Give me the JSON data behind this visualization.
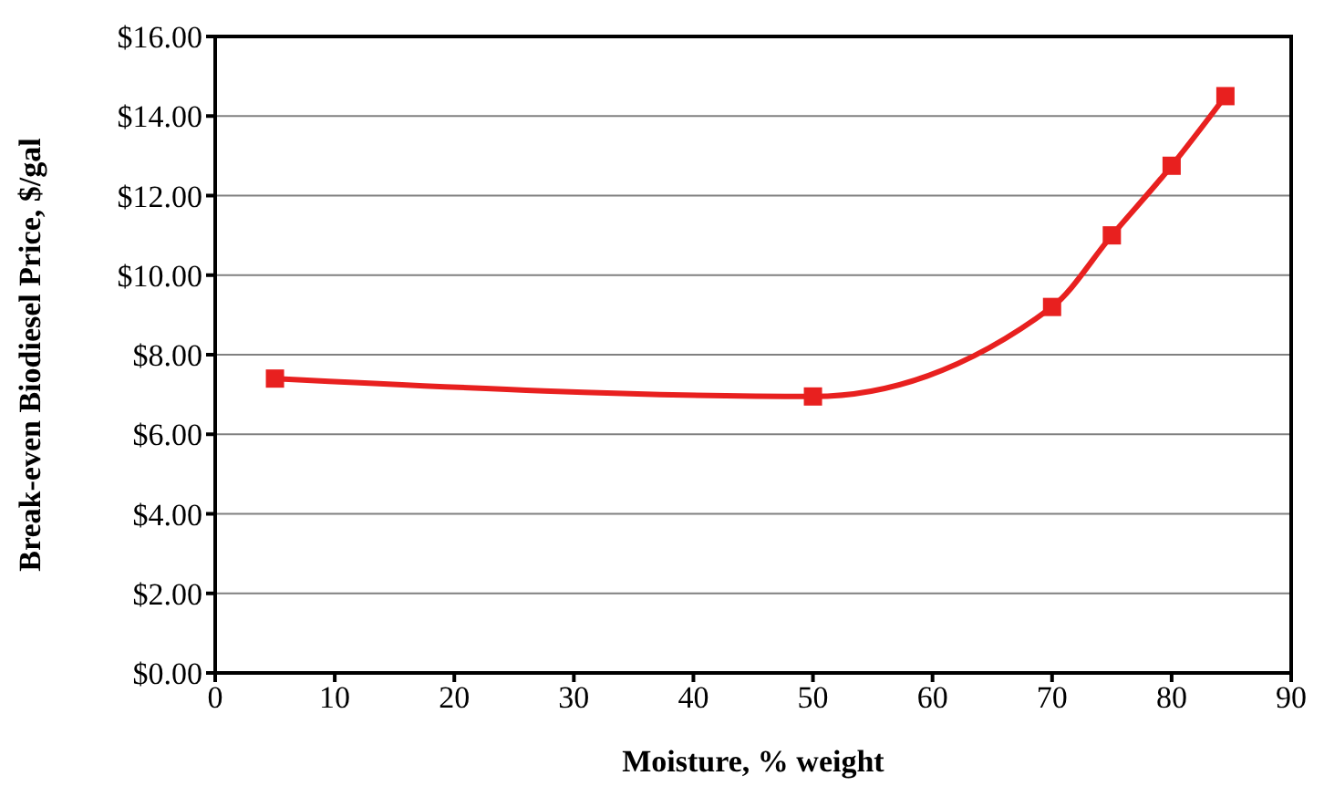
{
  "chart_data": {
    "type": "line",
    "xlabel": "Moisture, % weight",
    "ylabel": "Break-even Biodiesel Price, $/gal",
    "series": [
      {
        "color": "#e8201f",
        "x": [
          5,
          50,
          70,
          75,
          80,
          84.5
        ],
        "values": [
          7.4,
          6.95,
          9.2,
          11.0,
          12.75,
          14.5
        ]
      }
    ],
    "xlim": [
      0,
      90
    ],
    "xticks": [
      0,
      10,
      20,
      30,
      40,
      50,
      60,
      70,
      80,
      90
    ],
    "ylim": [
      0,
      16
    ],
    "yticks": [
      {
        "value": 0,
        "label": "$0.00"
      },
      {
        "value": 2,
        "label": "$2.00"
      },
      {
        "value": 4,
        "label": "$4.00"
      },
      {
        "value": 6,
        "label": "$6.00"
      },
      {
        "value": 8,
        "label": "$8.00"
      },
      {
        "value": 10,
        "label": "$10.00"
      },
      {
        "value": 12,
        "label": "$12.00"
      },
      {
        "value": 14,
        "label": "$14.00"
      },
      {
        "value": 16,
        "label": "$16.00"
      }
    ],
    "grid": "y",
    "marker": "square",
    "line_style": "solid",
    "legend": false
  }
}
